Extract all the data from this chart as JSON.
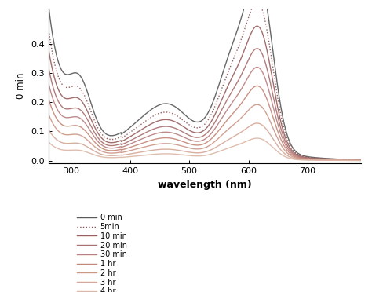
{
  "xlabel": "wavelength (nm)",
  "ylabel": "0 min",
  "xlim": [
    262,
    790
  ],
  "ylim": [
    -0.01,
    0.52
  ],
  "yticks": [
    0.0,
    0.1,
    0.2,
    0.3,
    0.4
  ],
  "xticks": [
    300,
    400,
    500,
    600,
    700
  ],
  "background_color": "#ffffff",
  "legend_labels": [
    "0 min",
    "5min",
    "10 min",
    "20 min",
    "30 min",
    "1 hr",
    "2 hr",
    "3 hr",
    "4 hr"
  ],
  "legend_linestyles": [
    "-",
    ":",
    "-",
    "-",
    "-",
    "-",
    "-",
    "-",
    "-"
  ],
  "series_colors": [
    "#5a5a5a",
    "#8a5050",
    "#9a6060",
    "#aa7070",
    "#ba8080",
    "#c48878",
    "#cc9888",
    "#d4a898",
    "#dcb8a8"
  ],
  "series_amplitudes": [
    1.0,
    0.85,
    0.72,
    0.6,
    0.5,
    0.4,
    0.3,
    0.2,
    0.12
  ]
}
